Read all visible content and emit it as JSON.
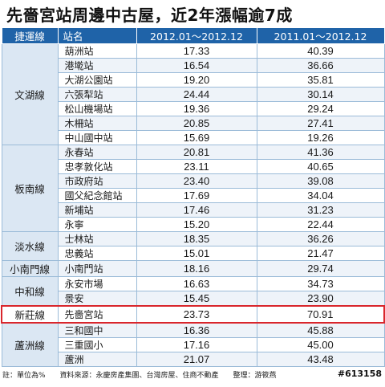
{
  "title": "先嗇宮站周邊中古屋，近2年漲幅逾7成",
  "headers": {
    "line": "捷運線",
    "station": "站名",
    "period_a": "2012.01～2012.12",
    "period_b": "2011.01～2012.12"
  },
  "groups": [
    {
      "line": "文湖線",
      "rows": [
        {
          "station": "葫洲站",
          "a": "17.33",
          "b": "40.39"
        },
        {
          "station": "港墘站",
          "a": "16.54",
          "b": "36.66"
        },
        {
          "station": "大湖公園站",
          "a": "19.20",
          "b": "35.81"
        },
        {
          "station": "六張犁站",
          "a": "24.44",
          "b": "30.14"
        },
        {
          "station": "松山機場站",
          "a": "19.36",
          "b": "29.24"
        },
        {
          "station": "木柵站",
          "a": "20.85",
          "b": "27.41"
        },
        {
          "station": "中山國中站",
          "a": "15.69",
          "b": "19.26"
        }
      ]
    },
    {
      "line": "板南線",
      "rows": [
        {
          "station": "永春站",
          "a": "20.81",
          "b": "41.36"
        },
        {
          "station": "忠孝敦化站",
          "a": "23.11",
          "b": "40.65"
        },
        {
          "station": "市政府站",
          "a": "23.40",
          "b": "39.08"
        },
        {
          "station": "國父紀念館站",
          "a": "17.69",
          "b": "34.04"
        },
        {
          "station": "新埔站",
          "a": "17.46",
          "b": "31.23"
        },
        {
          "station": "永寧",
          "a": "15.20",
          "b": "22.44"
        }
      ]
    },
    {
      "line": "淡水線",
      "rows": [
        {
          "station": "士林站",
          "a": "18.35",
          "b": "36.26"
        },
        {
          "station": "忠義站",
          "a": "15.01",
          "b": "21.47"
        }
      ]
    },
    {
      "line": "小南門線",
      "rows": [
        {
          "station": "小南門站",
          "a": "18.16",
          "b": "29.74"
        }
      ]
    },
    {
      "line": "中和線",
      "rows": [
        {
          "station": "永安市場",
          "a": "16.63",
          "b": "34.73"
        },
        {
          "station": "景安",
          "a": "15.45",
          "b": "23.90"
        }
      ]
    },
    {
      "line": "新莊線",
      "highlight": true,
      "rows": [
        {
          "station": "先嗇宮站",
          "a": "23.73",
          "b": "70.91"
        }
      ]
    },
    {
      "line": "蘆洲線",
      "rows": [
        {
          "station": "三和國中",
          "a": "16.36",
          "b": "45.88"
        },
        {
          "station": "三重國小",
          "a": "17.16",
          "b": "45.00"
        },
        {
          "station": "蘆洲",
          "a": "21.07",
          "b": "43.48"
        }
      ]
    }
  ],
  "footer": "註：單位為%　　資料來源：永慶房產集團、台灣房屋、住商不動產　　整理：游筱燕",
  "badge": "#613158",
  "colors": {
    "header": "#1f63a8",
    "highlight": "#d9262c",
    "line_cell": "#dbe7f3"
  }
}
